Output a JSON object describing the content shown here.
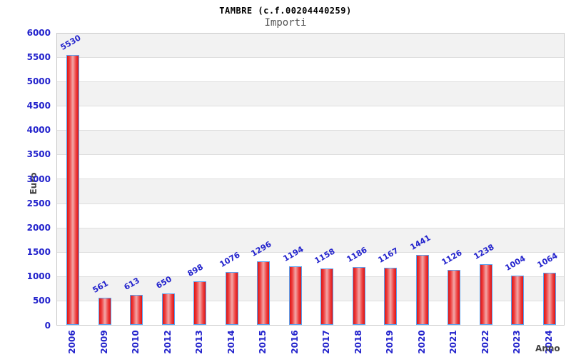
{
  "chart_data": {
    "type": "bar",
    "title": "TAMBRE (c.f.00204440259)",
    "subtitle": "Importi",
    "xlabel": "Anno",
    "ylabel": "Euro",
    "categories": [
      "2006",
      "2009",
      "2010",
      "2012",
      "2013",
      "2014",
      "2015",
      "2016",
      "2017",
      "2018",
      "2019",
      "2020",
      "2021",
      "2022",
      "2023",
      "2024"
    ],
    "values": [
      5530,
      561,
      613,
      650,
      898,
      1076,
      1296,
      1194,
      1158,
      1186,
      1167,
      1441,
      1126,
      1238,
      1004,
      1064
    ],
    "ylim": [
      0,
      6000
    ],
    "ytick_step": 500,
    "grid": "horizontal-bands",
    "legend": "none",
    "colors": {
      "tick_label": "#2222cc",
      "value_label": "#2222cc",
      "bar_fill_edge": "#dd1414",
      "bar_fill_inner": "#ee4040",
      "bar_fill_mid": "#f2a8a8",
      "bar_border": "#5aa2f0",
      "band_gray": "#f2f2f2",
      "band_white": "#ffffff",
      "gridline": "#dedede",
      "plot_border": "#c9c9c9",
      "title": "#000000",
      "subtitle": "#555555",
      "axis_title": "#444444"
    }
  }
}
